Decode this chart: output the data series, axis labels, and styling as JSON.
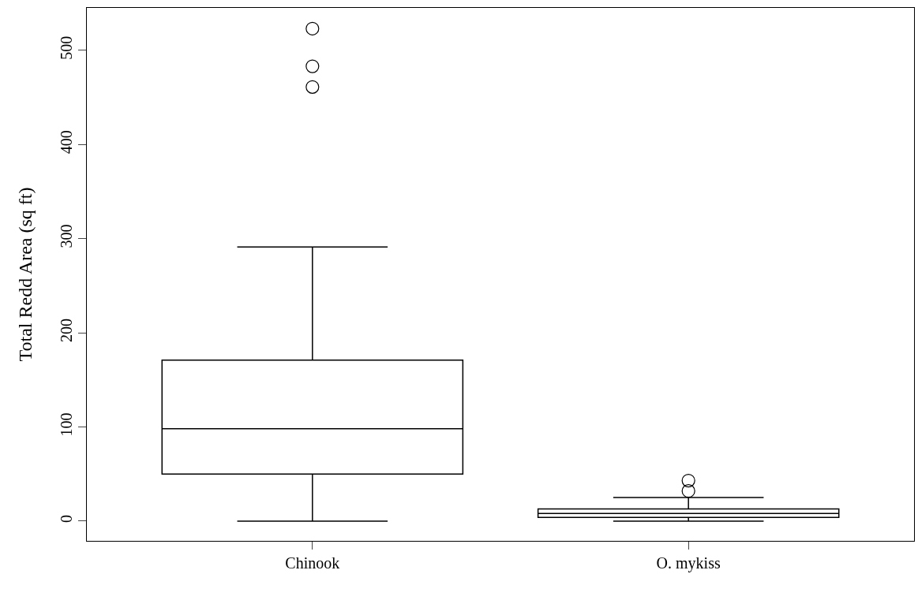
{
  "chart_data": {
    "type": "box",
    "ylabel": "Total Redd Area (sq ft)",
    "categories": [
      "Chinook",
      "O. mykiss"
    ],
    "boxes": [
      {
        "low": 0,
        "q1": 50,
        "median": 98,
        "q3": 171,
        "high": 291,
        "outliers": [
          523,
          483,
          461
        ]
      },
      {
        "low": 0,
        "q1": 4,
        "median": 8,
        "q3": 13,
        "high": 25,
        "outliers": [
          43,
          32
        ]
      }
    ],
    "color": "#000000",
    "ylim": [
      -21,
      545
    ],
    "yticks": [
      0,
      100,
      200,
      300,
      400,
      500
    ],
    "marker": "circle"
  }
}
